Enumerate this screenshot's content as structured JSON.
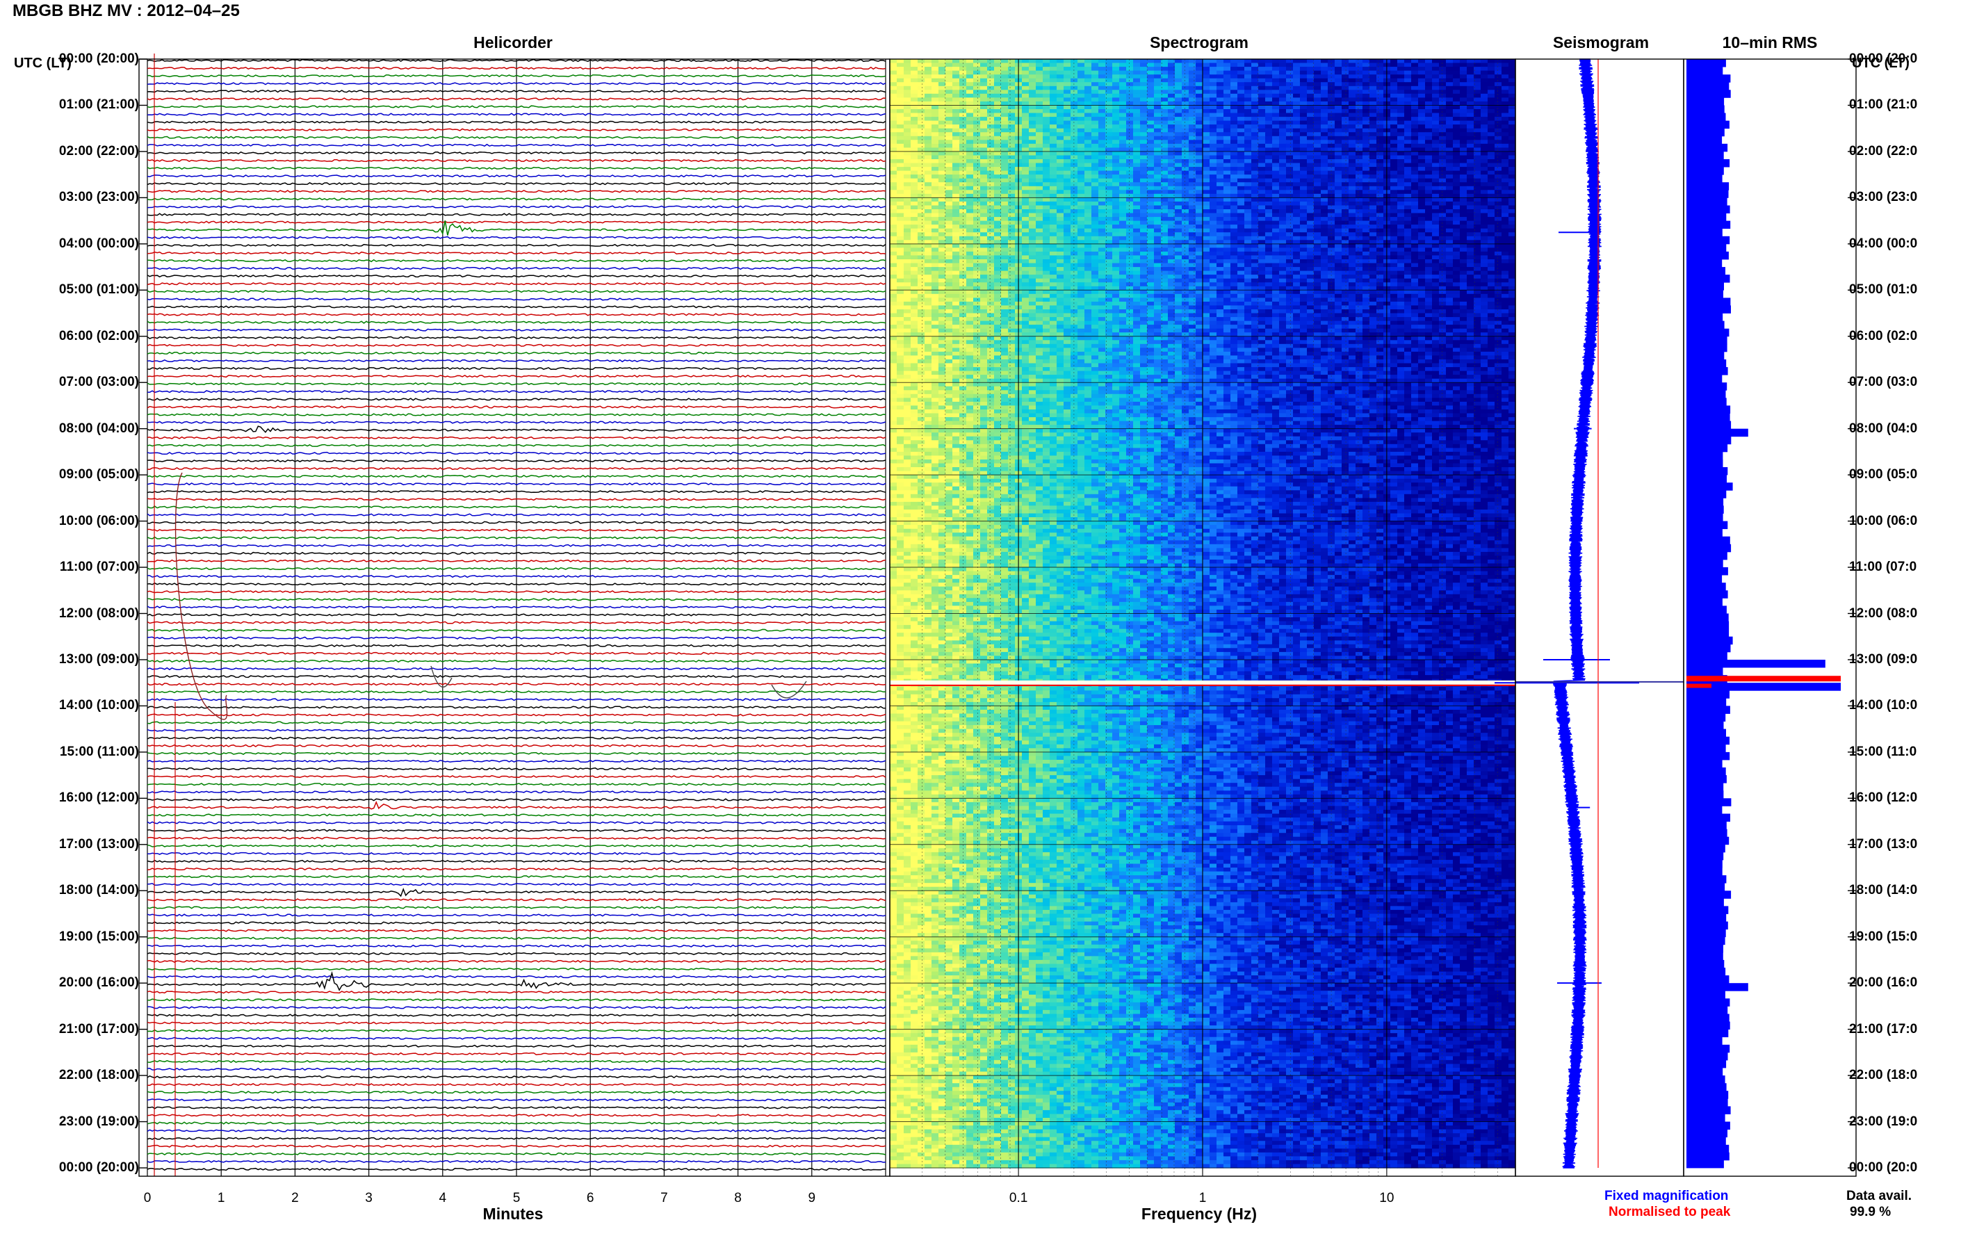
{
  "header": {
    "station": "MBGB BHZ MV",
    "separator": " : ",
    "date": "2012–04–25"
  },
  "panels": {
    "helicorder": "Helicorder",
    "spectrogram": "Spectrogram",
    "seismogram": "Seismogram",
    "rms": "10–min RMS"
  },
  "axis_labels": {
    "utc_left": "UTC (LT)",
    "utc_right": "UTC (LT)",
    "minutes": "Minutes",
    "frequency": "Frequency (Hz)"
  },
  "time_labels": [
    "00:00 (20:00)",
    "01:00 (21:00)",
    "02:00 (22:00)",
    "03:00 (23:00)",
    "04:00 (00:00)",
    "05:00 (01:00)",
    "06:00 (02:00)",
    "07:00 (03:00)",
    "08:00 (04:00)",
    "09:00 (05:00)",
    "10:00 (06:00)",
    "11:00 (07:00)",
    "12:00 (08:00)",
    "13:00 (09:00)",
    "14:00 (10:00)",
    "15:00 (11:00)",
    "16:00 (12:00)",
    "17:00 (13:00)",
    "18:00 (14:00)",
    "19:00 (15:00)",
    "20:00 (16:00)",
    "21:00 (17:00)",
    "22:00 (18:00)",
    "23:00 (19:00)",
    "00:00 (20:00)"
  ],
  "time_labels_right": [
    "00:00 (20:0",
    "01:00 (21:0",
    "02:00 (22:0",
    "03:00 (23:0",
    "04:00 (00:0",
    "05:00 (01:0",
    "06:00 (02:0",
    "07:00 (03:0",
    "08:00 (04:0",
    "09:00 (05:0",
    "10:00 (06:0",
    "11:00 (07:0",
    "12:00 (08:0",
    "13:00 (09:0",
    "14:00 (10:0",
    "15:00 (11:0",
    "16:00 (12:0",
    "17:00 (13:0",
    "18:00 (14:0",
    "19:00 (15:0",
    "20:00 (16:0",
    "21:00 (17:0",
    "22:00 (18:0",
    "23:00 (19:0",
    "00:00 (20:0"
  ],
  "minute_ticks": [
    "0",
    "1",
    "2",
    "3",
    "4",
    "5",
    "6",
    "7",
    "8",
    "9"
  ],
  "freq_ticks": [
    "0.1",
    "1",
    "10"
  ],
  "legend": {
    "fixed": "Fixed magnification",
    "normalised": "Normalised to peak",
    "data_avail_label": "Data avail.",
    "data_avail_value": "99.9 %"
  },
  "colors": {
    "trace_cycle": [
      "#000000",
      "#cc0000",
      "#008000",
      "#0000cc"
    ],
    "fixed": "#0000ff",
    "normalised": "#ff0000",
    "spectrogram_low": "#00008b",
    "spectrogram_high": "#ffff66"
  },
  "chart_data": [
    {
      "type": "line",
      "panel": "helicorder",
      "xlabel": "Minutes",
      "xlim": [
        0,
        10
      ],
      "rows_per_hour": 6,
      "hours": 24,
      "events": [
        {
          "hour": 3.6,
          "minute": 4.0,
          "amp": 0.9
        },
        {
          "hour": 8.0,
          "minute": 1.4,
          "amp": 0.5
        },
        {
          "hour": 20.0,
          "minute": 2.4,
          "amp": 1.5
        },
        {
          "hour": 20.0,
          "minute": 5.1,
          "amp": 0.6
        },
        {
          "hour": 16.1,
          "minute": 3.1,
          "amp": 0.4
        },
        {
          "hour": 18.0,
          "minute": 3.4,
          "amp": 0.4
        }
      ]
    },
    {
      "type": "heatmap",
      "panel": "spectrogram",
      "xlabel": "Frequency (Hz)",
      "xscale": "log",
      "xlim": [
        0.02,
        50
      ],
      "hours": 24
    },
    {
      "type": "line",
      "panel": "seismogram",
      "hours": 24
    },
    {
      "type": "bar",
      "panel": "rms",
      "orientation": "horizontal",
      "title": "10–min RMS",
      "hours": 24,
      "spikes": [
        {
          "hour": 3.8,
          "value": 0.28
        },
        {
          "hour": 8.0,
          "value": 0.4
        },
        {
          "hour": 9.1,
          "value": 0.3
        },
        {
          "hour": 12.5,
          "value": 0.3
        },
        {
          "hour": 13.0,
          "value": 0.9
        },
        {
          "hour": 13.5,
          "value": 1.0
        },
        {
          "hour": 15.0,
          "value": 0.28
        },
        {
          "hour": 20.0,
          "value": 0.4
        }
      ]
    }
  ]
}
